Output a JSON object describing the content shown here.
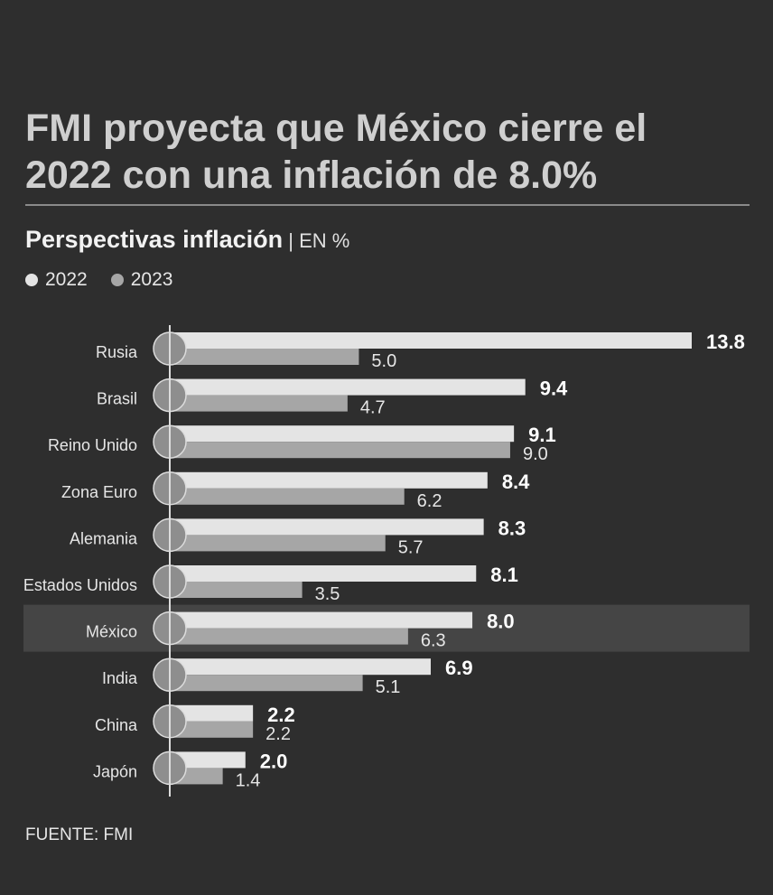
{
  "title_line1": "FMI proyecta que México cierre el",
  "title_line2": "2022 con una inflación de 8.0%",
  "subtitle": {
    "main": "Perspectivas inflación",
    "sep": " | ",
    "unit": "EN %"
  },
  "legend": [
    {
      "label": "2022",
      "color": "#e4e4e4"
    },
    {
      "label": "2023",
      "color": "#a6a6a6"
    }
  ],
  "source": "FUENTE: FMI",
  "highlight": "México",
  "chart_data": {
    "type": "bar",
    "orientation": "horizontal",
    "categories": [
      "Rusia",
      "Brasil",
      "Reino Unido",
      "Zona Euro",
      "Alemania",
      "Estados Unidos",
      "México",
      "India",
      "China",
      "Japón"
    ],
    "series": [
      {
        "name": "2022",
        "values": [
          13.8,
          9.4,
          9.1,
          8.4,
          8.3,
          8.1,
          8.0,
          6.9,
          2.2,
          2.0
        ],
        "labels": [
          "13.8",
          "9.4",
          "9.1",
          "8.4",
          "8.3",
          "8.1",
          "8.0",
          "6.9",
          "2.2",
          "2.0"
        ],
        "color": "#e4e4e4"
      },
      {
        "name": "2023",
        "values": [
          5.0,
          4.7,
          9.0,
          6.2,
          5.7,
          3.5,
          6.3,
          5.1,
          2.2,
          1.4
        ],
        "labels": [
          "5.0",
          "4.7",
          "9.0",
          "6.2",
          "5.7",
          "3.5",
          "6.3",
          "5.1",
          "2.2",
          "1.4"
        ],
        "color": "#a6a6a6"
      }
    ],
    "title": "Perspectivas inflación",
    "xlabel": "",
    "ylabel": "",
    "xlim": [
      0,
      13.8
    ]
  }
}
